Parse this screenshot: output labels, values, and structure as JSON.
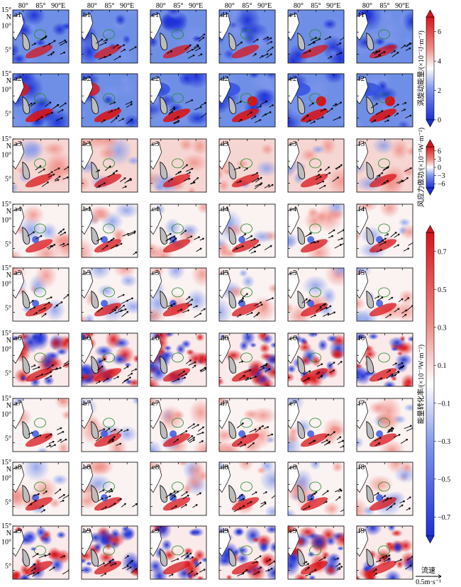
{
  "chart_data": {
    "type": "heatmap",
    "columns": [
      "a",
      "b",
      "c",
      "d",
      "e",
      "f"
    ],
    "rows": 9,
    "panel_labels": [
      [
        "a1",
        "b1",
        "c1",
        "d1",
        "e1",
        "f1"
      ],
      [
        "a2",
        "b2",
        "c2",
        "d2",
        "e2",
        "f2"
      ],
      [
        "a3",
        "b3",
        "c3",
        "d3",
        "e3",
        "f3"
      ],
      [
        "a4",
        "b4",
        "c4",
        "d4",
        "e4",
        "f4"
      ],
      [
        "a5",
        "b5",
        "c5",
        "d5",
        "e5",
        "f5"
      ],
      [
        "a6",
        "b6",
        "c6",
        "d6",
        "e6",
        "f6"
      ],
      [
        "a7",
        "b7",
        "c7",
        "d7",
        "e7",
        "f7"
      ],
      [
        "a8",
        "b8",
        "c8",
        "d8",
        "e8",
        "f8"
      ],
      [
        "a9",
        "b9",
        "c9",
        "d9",
        "e9",
        "f9"
      ]
    ],
    "x_ticks": [
      "80°",
      "85°",
      "90°E"
    ],
    "y_ticks": [
      "15°",
      "N",
      "10°",
      "5°"
    ],
    "xlim": [
      77,
      93
    ],
    "ylim": [
      3,
      15
    ],
    "colorbars": [
      {
        "label": "涡旋动能量/(×10⁻²J·m⁻³)",
        "ticks": [
          "0",
          "2",
          "4",
          "6"
        ],
        "range": [
          0,
          7
        ],
        "applies_to_rows": [
          1,
          2
        ],
        "colors": [
          "#1b2fd6",
          "#ffffff",
          "#d8141a"
        ]
      },
      {
        "label": "风应力做功/(×10⁻³W·m⁻²)",
        "ticks": [
          "6",
          "3",
          "0",
          "−3",
          "−6"
        ],
        "range": [
          -6,
          6
        ],
        "applies_to_rows": [
          3
        ],
        "colors": [
          "#1b2fd6",
          "#ffffff",
          "#d8141a"
        ]
      },
      {
        "label": "能量转化率/(×10⁻³W·m⁻²)",
        "ticks": [
          "0.7",
          "0.5",
          "0.3",
          "0.1",
          "−0.1",
          "−0.3",
          "−0.5",
          "−0.7"
        ],
        "range": [
          -0.7,
          0.7
        ],
        "applies_to_rows": [
          4,
          5,
          6,
          7,
          8,
          9
        ],
        "colors": [
          "#1b2fd6",
          "#ffffff",
          "#d8141a"
        ]
      }
    ],
    "vector_legend": {
      "title": "流速",
      "scale": "0.5m·s⁻¹"
    },
    "grid": false
  }
}
